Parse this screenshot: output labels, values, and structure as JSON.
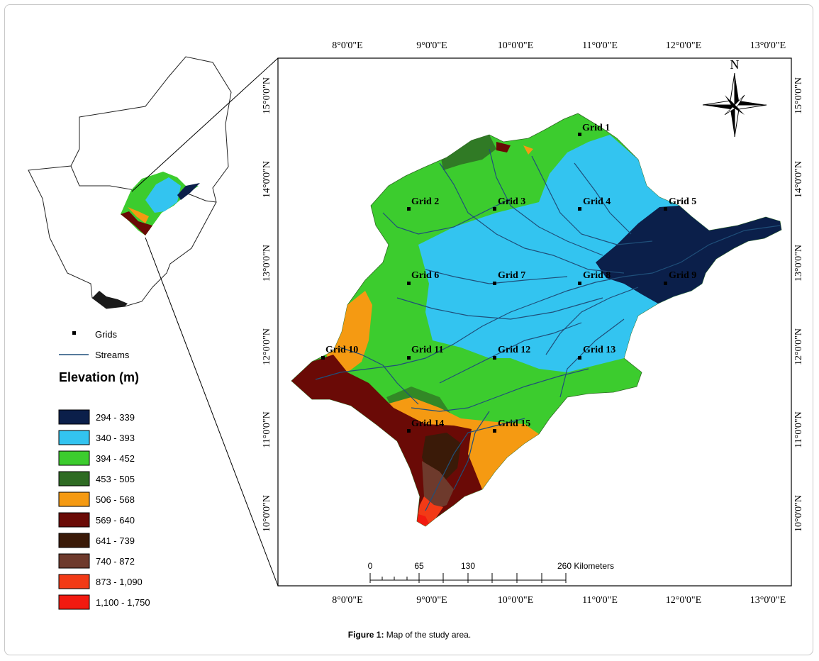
{
  "caption": {
    "label": "Figure 1:",
    "text": " Map of the study area."
  },
  "north_label": "N",
  "top_longitudes": [
    "8°0'0\"E",
    "9°0'0\"E",
    "10°0'0\"E",
    "11°0'0\"E",
    "12°0'0\"E",
    "13°0'0\"E"
  ],
  "bottom_longitudes": [
    "8°0'0\"E",
    "9°0'0\"E",
    "10°0'0\"E",
    "11°0'0\"E",
    "12°0'0\"E",
    "13°0'0\"E"
  ],
  "left_latitudes": [
    "15°0'0\"N",
    "14°0'0\"N",
    "13°0'0\"N",
    "12°0'0\"N",
    "11°0'0\"N",
    "10°0'0\"N"
  ],
  "right_latitudes": [
    "15°0'0\"N",
    "14°0'0\"N",
    "13°0'0\"N",
    "12°0'0\"N",
    "11°0'0\"N",
    "10°0'0\"N"
  ],
  "grids": [
    "Grid 1",
    "Grid 2",
    "Grid 3",
    "Grid 4",
    "Grid 5",
    "Grid 6",
    "Grid 7",
    "Grid 8",
    "Grid 9",
    "Grid 10",
    "Grid 11",
    "Grid 12",
    "Grid 13",
    "Grid 14",
    "Grid 15"
  ],
  "legend": {
    "grids_label": "Grids",
    "streams_label": "Streams",
    "title": "Elevation (m)",
    "classes": [
      {
        "label": "294 - 339",
        "color": "#0b1f4a"
      },
      {
        "label": "340 - 393",
        "color": "#33c4f0"
      },
      {
        "label": "394 - 452",
        "color": "#3ccc2e"
      },
      {
        "label": "453 - 505",
        "color": "#2e6b23"
      },
      {
        "label": "506 - 568",
        "color": "#f59a12"
      },
      {
        "label": "569 - 640",
        "color": "#6a0a06"
      },
      {
        "label": "641 - 739",
        "color": "#3a1a08"
      },
      {
        "label": "740 - 872",
        "color": "#6e3a2c"
      },
      {
        "label": "873 - 1,090",
        "color": "#f23a16"
      },
      {
        "label": "1,100 - 1,750",
        "color": "#f21a10"
      }
    ]
  },
  "scale_bar": {
    "ticks": [
      "0",
      "65",
      "130",
      "260 Kilometers"
    ]
  },
  "stream_color": "#1f4f7a"
}
